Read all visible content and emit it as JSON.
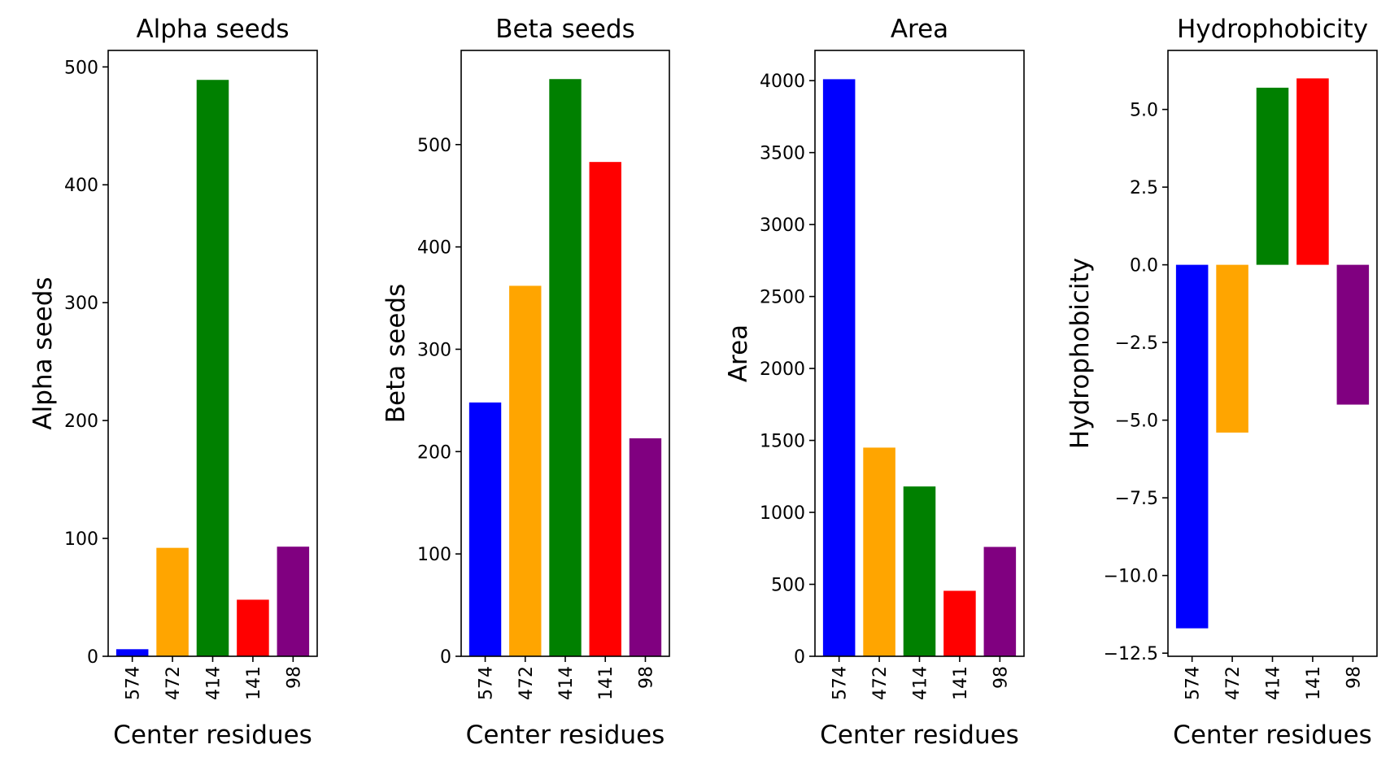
{
  "chart_data": [
    {
      "type": "bar",
      "title": "Alpha seeds",
      "xlabel": "Center residues",
      "ylabel": "Alpha seeds",
      "categories": [
        "574",
        "472",
        "414",
        "141",
        "98"
      ],
      "values": [
        6,
        92,
        489,
        48,
        93
      ],
      "colors": [
        "#0000ff",
        "#ffa500",
        "#008000",
        "#ff0000",
        "#800080"
      ],
      "ylim": [
        0,
        514
      ],
      "yticks": [
        0,
        100,
        200,
        300,
        400,
        500
      ],
      "ytick_labels": [
        "0",
        "100",
        "200",
        "300",
        "400",
        "500"
      ],
      "grid": false
    },
    {
      "type": "bar",
      "title": "Beta seeds",
      "xlabel": "Center residues",
      "ylabel": "Beta seeds",
      "categories": [
        "574",
        "472",
        "414",
        "141",
        "98"
      ],
      "values": [
        248,
        362,
        564,
        483,
        213
      ],
      "colors": [
        "#0000ff",
        "#ffa500",
        "#008000",
        "#ff0000",
        "#800080"
      ],
      "ylim": [
        0,
        592
      ],
      "yticks": [
        0,
        100,
        200,
        300,
        400,
        500
      ],
      "ytick_labels": [
        "0",
        "100",
        "200",
        "300",
        "400",
        "500"
      ],
      "grid": false
    },
    {
      "type": "bar",
      "title": "Area",
      "xlabel": "Center residues",
      "ylabel": "Area",
      "categories": [
        "574",
        "472",
        "414",
        "141",
        "98"
      ],
      "values": [
        4010,
        1450,
        1180,
        455,
        760
      ],
      "colors": [
        "#0000ff",
        "#ffa500",
        "#008000",
        "#ff0000",
        "#800080"
      ],
      "ylim": [
        0,
        4210
      ],
      "yticks": [
        0,
        500,
        1000,
        1500,
        2000,
        2500,
        3000,
        3500,
        4000
      ],
      "ytick_labels": [
        "0",
        "500",
        "1000",
        "1500",
        "2000",
        "2500",
        "3000",
        "3500",
        "4000"
      ],
      "grid": false
    },
    {
      "type": "bar",
      "title": "Hydrophobicity",
      "xlabel": "Center residues",
      "ylabel": "Hydrophobicity",
      "categories": [
        "574",
        "472",
        "414",
        "141",
        "98"
      ],
      "values": [
        -11.7,
        -5.4,
        5.7,
        6.0,
        -4.5
      ],
      "colors": [
        "#0000ff",
        "#ffa500",
        "#008000",
        "#ff0000",
        "#800080"
      ],
      "ylim": [
        -12.6,
        6.9
      ],
      "yticks": [
        -12.5,
        -10.0,
        -7.5,
        -5.0,
        -2.5,
        0.0,
        2.5,
        5.0
      ],
      "ytick_labels": [
        "−12.5",
        "−10.0",
        "−7.5",
        "−5.0",
        "−2.5",
        "0.0",
        "2.5",
        "5.0"
      ],
      "grid": false
    }
  ]
}
